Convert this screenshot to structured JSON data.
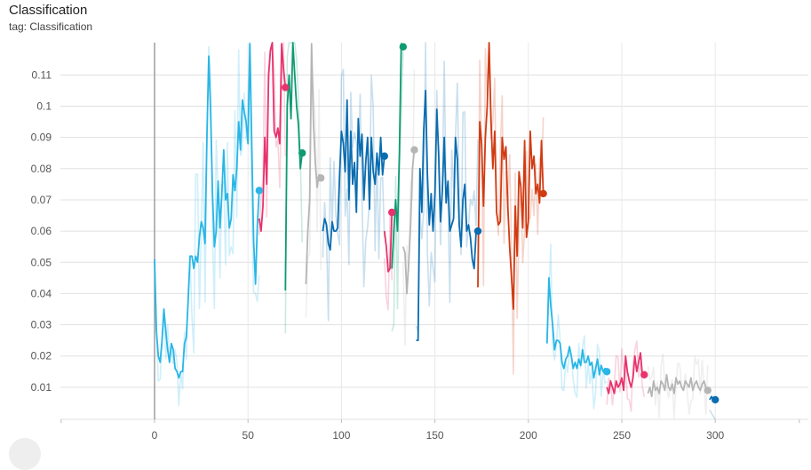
{
  "header": {
    "title": "Classification",
    "subtitle": "tag: Classification"
  },
  "colors": {
    "light_blue": "#29b6e6",
    "pink": "#e8336d",
    "teal": "#0f9a72",
    "gray": "#b5b5b5",
    "dark_blue": "#0a6cb0",
    "orange": "#d13b12"
  },
  "chart_data": {
    "type": "line",
    "title": "Classification",
    "xlabel": "",
    "ylabel": "",
    "xlim": [
      -50,
      345
    ],
    "ylim": [
      0,
      0.12
    ],
    "grid": true,
    "x_ticks": [
      0,
      50,
      100,
      150,
      200,
      250,
      300
    ],
    "y_ticks": [
      0.01,
      0.02,
      0.03,
      0.04,
      0.05,
      0.06,
      0.07,
      0.08,
      0.09,
      0.1,
      0.11
    ],
    "x_tick_labels": [
      "0",
      "50",
      "100",
      "150",
      "200",
      "250",
      "300"
    ],
    "y_tick_labels": [
      "0.01",
      "0.02",
      "0.03",
      "0.04",
      "0.05",
      "0.06",
      "0.07",
      "0.08",
      "0.09",
      "0.1",
      "0.11"
    ],
    "series": [
      {
        "color": "#29b6e6",
        "x": [
          0,
          1,
          2,
          3,
          4,
          5,
          6,
          7,
          8,
          9,
          10,
          11,
          12,
          13,
          14,
          15,
          16,
          17,
          18,
          19,
          20,
          21,
          22,
          23,
          24,
          25,
          26,
          27,
          28,
          29,
          30,
          31,
          32,
          33,
          34,
          35,
          36,
          37,
          38,
          39,
          40,
          41,
          42,
          43,
          44,
          45,
          46,
          47,
          48,
          49,
          50,
          51,
          52,
          53,
          54,
          55,
          56
        ],
        "y": [
          0.051,
          0.028,
          0.02,
          0.018,
          0.025,
          0.035,
          0.028,
          0.022,
          0.018,
          0.024,
          0.022,
          0.016,
          0.015,
          0.013,
          0.015,
          0.015,
          0.024,
          0.026,
          0.038,
          0.052,
          0.052,
          0.048,
          0.052,
          0.05,
          0.058,
          0.063,
          0.061,
          0.056,
          0.09,
          0.116,
          0.098,
          0.072,
          0.055,
          0.06,
          0.076,
          0.061,
          0.072,
          0.086,
          0.07,
          0.072,
          0.061,
          0.064,
          0.078,
          0.073,
          0.08,
          0.095,
          0.086,
          0.102,
          0.098,
          0.095,
          0.088,
          0.12,
          0.088,
          0.057,
          0.043,
          0.062,
          0.073
        ]
      },
      {
        "color": "#e8336d",
        "x": [
          56,
          57,
          58,
          59,
          60,
          61,
          62,
          63,
          64,
          65,
          66,
          67,
          68,
          69,
          70
        ],
        "y": [
          0.064,
          0.06,
          0.068,
          0.09,
          0.075,
          0.11,
          0.118,
          0.122,
          0.092,
          0.09,
          0.093,
          0.088,
          0.12,
          0.112,
          0.106
        ]
      },
      {
        "color": "#0f9a72",
        "x": [
          70,
          71,
          72,
          73,
          74,
          75,
          76,
          77,
          78,
          79
        ],
        "y": [
          0.041,
          0.1,
          0.11,
          0.096,
          0.125,
          0.11,
          0.1,
          0.094,
          0.08,
          0.085
        ]
      },
      {
        "color": "#b5b5b5",
        "x": [
          81,
          82,
          83,
          84,
          85,
          86,
          87,
          88,
          89
        ],
        "y": [
          0.043,
          0.06,
          0.07,
          0.12,
          0.095,
          0.082,
          0.074,
          0.078,
          0.077
        ]
      },
      {
        "color": "#0a6cb0",
        "x": [
          90,
          91,
          92,
          93,
          94,
          95,
          96,
          97,
          98,
          99,
          100,
          101,
          102,
          103,
          104,
          105,
          106,
          107,
          108,
          109,
          110,
          111,
          112,
          113,
          114,
          115,
          116,
          117,
          118,
          119,
          120,
          121,
          122,
          123
        ],
        "y": [
          0.06,
          0.064,
          0.062,
          0.056,
          0.054,
          0.063,
          0.06,
          0.06,
          0.061,
          0.078,
          0.092,
          0.088,
          0.079,
          0.102,
          0.07,
          0.092,
          0.075,
          0.082,
          0.066,
          0.096,
          0.084,
          0.091,
          0.07,
          0.082,
          0.09,
          0.067,
          0.09,
          0.079,
          0.075,
          0.085,
          0.078,
          0.09,
          0.078,
          0.084
        ]
      },
      {
        "color": "#e8336d",
        "x": [
          123,
          124,
          125,
          126,
          127
        ],
        "y": [
          0.06,
          0.055,
          0.047,
          0.048,
          0.066
        ]
      },
      {
        "color": "#0f9a72",
        "x": [
          127,
          128,
          129,
          130,
          131,
          132,
          133
        ],
        "y": [
          0.048,
          0.06,
          0.07,
          0.06,
          0.085,
          0.12,
          0.119
        ]
      },
      {
        "color": "#b5b5b5",
        "x": [
          133,
          134,
          135,
          136,
          137,
          138,
          139
        ],
        "y": [
          0.055,
          0.053,
          0.04,
          0.05,
          0.062,
          0.08,
          0.086
        ]
      },
      {
        "color": "#0a6cb0",
        "x": [
          140,
          141,
          142,
          143,
          144,
          145,
          146,
          147,
          148,
          149,
          150,
          151,
          152,
          153,
          154,
          155,
          156,
          157,
          158,
          159,
          160,
          161,
          162,
          163,
          164,
          165,
          166,
          167,
          168,
          169,
          170,
          171,
          172,
          173
        ],
        "y": [
          0.025,
          0.025,
          0.08,
          0.066,
          0.092,
          0.105,
          0.078,
          0.062,
          0.072,
          0.06,
          0.072,
          0.099,
          0.085,
          0.063,
          0.073,
          0.09,
          0.069,
          0.076,
          0.06,
          0.062,
          0.064,
          0.09,
          0.083,
          0.062,
          0.055,
          0.07,
          0.075,
          0.06,
          0.062,
          0.058,
          0.051,
          0.048,
          0.059,
          0.06
        ]
      },
      {
        "color": "#d13b12",
        "x": [
          173,
          174,
          175,
          176,
          177,
          178,
          179,
          180,
          181,
          182,
          183,
          184,
          185,
          186,
          187,
          188,
          189,
          190,
          191,
          192,
          193,
          194,
          195,
          196,
          197,
          198,
          199,
          200,
          201,
          202,
          203,
          204,
          205,
          206,
          207,
          208
        ],
        "y": [
          0.042,
          0.095,
          0.088,
          0.068,
          0.09,
          0.1,
          0.122,
          0.096,
          0.08,
          0.092,
          0.066,
          0.062,
          0.063,
          0.09,
          0.083,
          0.087,
          0.068,
          0.055,
          0.045,
          0.035,
          0.068,
          0.052,
          0.079,
          0.074,
          0.061,
          0.089,
          0.058,
          0.063,
          0.092,
          0.08,
          0.084,
          0.072,
          0.075,
          0.069,
          0.089,
          0.072
        ]
      },
      {
        "color": "#29b6e6",
        "x": [
          210,
          211,
          212,
          213,
          214,
          215,
          216,
          217,
          218,
          219,
          220,
          221,
          222,
          223,
          224,
          225,
          226,
          227,
          228,
          229,
          230,
          231,
          232,
          233,
          234,
          235,
          236,
          237,
          238,
          239,
          240,
          241,
          242
        ],
        "y": [
          0.024,
          0.045,
          0.036,
          0.03,
          0.022,
          0.025,
          0.025,
          0.024,
          0.018,
          0.016,
          0.019,
          0.02,
          0.023,
          0.02,
          0.016,
          0.018,
          0.016,
          0.019,
          0.017,
          0.022,
          0.018,
          0.018,
          0.02,
          0.017,
          0.018,
          0.013,
          0.016,
          0.019,
          0.014,
          0.017,
          0.015,
          0.016,
          0.015
        ]
      },
      {
        "color": "#e8336d",
        "x": [
          242,
          243,
          244,
          245,
          246,
          247,
          248,
          249,
          250,
          251,
          252,
          253,
          254,
          255,
          256,
          257,
          258,
          259,
          260,
          261,
          262
        ],
        "y": [
          0.01,
          0.008,
          0.012,
          0.01,
          0.008,
          0.012,
          0.01,
          0.011,
          0.013,
          0.009,
          0.02,
          0.015,
          0.012,
          0.01,
          0.013,
          0.02,
          0.015,
          0.018,
          0.021,
          0.014,
          0.014
        ]
      },
      {
        "color": "#b5b5b5",
        "x": [
          264,
          265,
          266,
          267,
          268,
          269,
          270,
          271,
          272,
          273,
          274,
          275,
          276,
          277,
          278,
          279,
          280,
          281,
          282,
          283,
          284,
          285,
          286,
          287,
          288,
          289,
          290,
          291,
          292,
          293,
          294,
          295,
          296
        ],
        "y": [
          0.008,
          0.01,
          0.007,
          0.012,
          0.009,
          0.01,
          0.008,
          0.012,
          0.011,
          0.009,
          0.014,
          0.01,
          0.009,
          0.011,
          0.008,
          0.013,
          0.011,
          0.012,
          0.01,
          0.009,
          0.012,
          0.011,
          0.01,
          0.013,
          0.009,
          0.011,
          0.012,
          0.01,
          0.009,
          0.011,
          0.012,
          0.01,
          0.009
        ]
      },
      {
        "color": "#0a6cb0",
        "x": [
          297,
          298,
          299,
          300
        ],
        "y": [
          0.006,
          0.007,
          0.006,
          0.006
        ]
      }
    ]
  }
}
